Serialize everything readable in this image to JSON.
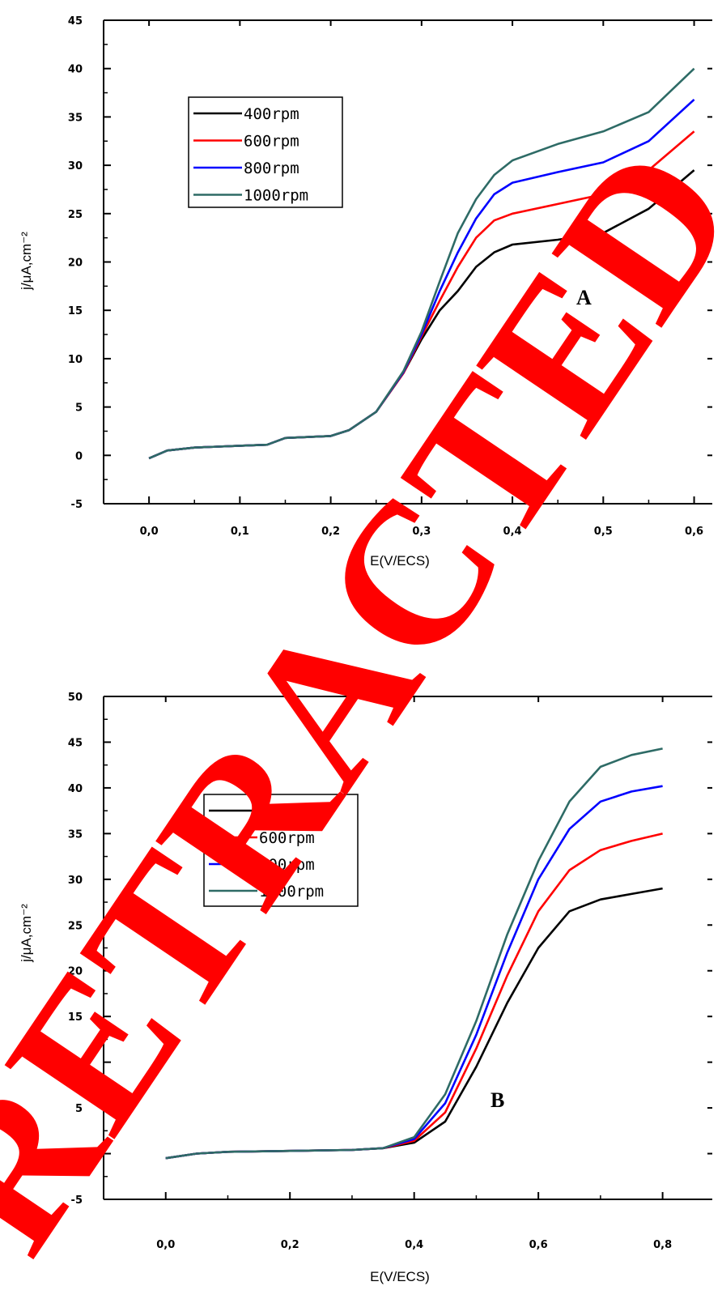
{
  "chart_data": [
    {
      "type": "line",
      "panel_label": "A",
      "xlabel": "E(V/ECS)",
      "ylabel": "j/μA,cm⁻²",
      "xlim": [
        -0.05,
        0.62
      ],
      "ylim": [
        -5,
        45
      ],
      "x_ticks": [
        0.0,
        0.1,
        0.2,
        0.3,
        0.4,
        0.5,
        0.6
      ],
      "x_tick_labels": [
        "0,0",
        "0,1",
        "0,2",
        "0,3",
        "0,4",
        "0,5",
        "0,6"
      ],
      "y_ticks": [
        -5,
        0,
        5,
        10,
        15,
        20,
        25,
        30,
        35,
        40,
        45
      ],
      "y_tick_labels": [
        "-5",
        "0",
        "5",
        "10",
        "15",
        "20",
        "25",
        "30",
        "35",
        "40",
        "45"
      ],
      "legend_position": "upper-left",
      "series": [
        {
          "name": "400rpm",
          "color": "#000000",
          "x": [
            0.0,
            0.02,
            0.05,
            0.1,
            0.13,
            0.15,
            0.2,
            0.22,
            0.25,
            0.28,
            0.3,
            0.32,
            0.34,
            0.36,
            0.38,
            0.4,
            0.45,
            0.5,
            0.55,
            0.6
          ],
          "y": [
            -0.3,
            0.5,
            0.8,
            1.0,
            1.1,
            1.8,
            2.0,
            2.6,
            4.5,
            8.5,
            12.0,
            15.0,
            17.0,
            19.5,
            21.0,
            21.8,
            22.3,
            23.0,
            25.5,
            29.5
          ]
        },
        {
          "name": "600rpm",
          "color": "#ff0000",
          "x": [
            0.0,
            0.02,
            0.05,
            0.1,
            0.13,
            0.15,
            0.2,
            0.22,
            0.25,
            0.28,
            0.3,
            0.32,
            0.34,
            0.36,
            0.38,
            0.4,
            0.45,
            0.5,
            0.55,
            0.6
          ],
          "y": [
            -0.3,
            0.5,
            0.8,
            1.0,
            1.1,
            1.8,
            2.0,
            2.6,
            4.5,
            8.5,
            12.3,
            16.0,
            19.5,
            22.5,
            24.3,
            25.0,
            26.0,
            27.0,
            29.5,
            33.5
          ]
        },
        {
          "name": "800rpm",
          "color": "#0000ff",
          "x": [
            0.0,
            0.02,
            0.05,
            0.1,
            0.13,
            0.15,
            0.2,
            0.22,
            0.25,
            0.28,
            0.3,
            0.32,
            0.34,
            0.36,
            0.38,
            0.4,
            0.45,
            0.5,
            0.55,
            0.6
          ],
          "y": [
            -0.3,
            0.5,
            0.8,
            1.0,
            1.1,
            1.8,
            2.0,
            2.6,
            4.5,
            8.6,
            12.5,
            17.0,
            21.0,
            24.5,
            27.0,
            28.2,
            29.3,
            30.3,
            32.5,
            36.8
          ]
        },
        {
          "name": "1000rpm",
          "color": "#2e6b66",
          "x": [
            0.0,
            0.02,
            0.05,
            0.1,
            0.13,
            0.15,
            0.2,
            0.22,
            0.25,
            0.28,
            0.3,
            0.32,
            0.34,
            0.36,
            0.38,
            0.4,
            0.45,
            0.5,
            0.55,
            0.6
          ],
          "y": [
            -0.3,
            0.5,
            0.8,
            1.0,
            1.1,
            1.8,
            2.0,
            2.6,
            4.5,
            8.7,
            12.8,
            18.0,
            23.0,
            26.5,
            29.0,
            30.5,
            32.2,
            33.5,
            35.5,
            40.0
          ]
        }
      ]
    },
    {
      "type": "line",
      "panel_label": "B",
      "xlabel": "E(V/ECS)",
      "ylabel": "j/μA,cm⁻²",
      "xlim": [
        -0.1,
        0.88
      ],
      "ylim": [
        -5,
        50
      ],
      "x_ticks": [
        0.0,
        0.2,
        0.4,
        0.6,
        0.8
      ],
      "x_tick_labels": [
        "0,0",
        "0,2",
        "0,4",
        "0,6",
        "0,8"
      ],
      "y_ticks": [
        -5,
        0,
        5,
        10,
        15,
        20,
        25,
        30,
        35,
        40,
        45,
        50
      ],
      "y_tick_labels": [
        "-5",
        "0",
        "5",
        "10",
        "15",
        "20",
        "25",
        "30",
        "35",
        "40",
        "45",
        "50"
      ],
      "legend_position": "upper-left",
      "series": [
        {
          "name": "400rpm",
          "color": "#000000",
          "x": [
            0.0,
            0.05,
            0.1,
            0.2,
            0.3,
            0.35,
            0.4,
            0.45,
            0.5,
            0.55,
            0.6,
            0.65,
            0.7,
            0.75,
            0.8
          ],
          "y": [
            -0.5,
            0.0,
            0.2,
            0.3,
            0.4,
            0.6,
            1.2,
            3.5,
            9.5,
            16.5,
            22.5,
            26.5,
            27.8,
            28.4,
            29.0
          ]
        },
        {
          "name": "600rpm",
          "color": "#ff0000",
          "x": [
            0.0,
            0.05,
            0.1,
            0.2,
            0.3,
            0.35,
            0.4,
            0.45,
            0.5,
            0.55,
            0.6,
            0.65,
            0.7,
            0.75,
            0.8
          ],
          "y": [
            -0.5,
            0.0,
            0.2,
            0.3,
            0.4,
            0.6,
            1.4,
            4.5,
            11.5,
            19.5,
            26.5,
            31.0,
            33.2,
            34.2,
            35.0
          ]
        },
        {
          "name": "800rpm",
          "color": "#0000ff",
          "x": [
            0.0,
            0.05,
            0.1,
            0.2,
            0.3,
            0.35,
            0.4,
            0.45,
            0.5,
            0.55,
            0.6,
            0.65,
            0.7,
            0.75,
            0.8
          ],
          "y": [
            -0.5,
            0.0,
            0.2,
            0.3,
            0.4,
            0.6,
            1.6,
            5.5,
            13.0,
            22.0,
            30.0,
            35.5,
            38.5,
            39.6,
            40.2
          ]
        },
        {
          "name": "1000rpm",
          "color": "#2e6b66",
          "x": [
            0.0,
            0.05,
            0.1,
            0.2,
            0.3,
            0.35,
            0.4,
            0.45,
            0.5,
            0.55,
            0.6,
            0.65,
            0.7,
            0.75,
            0.8
          ],
          "y": [
            -0.5,
            0.0,
            0.2,
            0.3,
            0.4,
            0.6,
            1.8,
            6.5,
            14.5,
            24.0,
            32.0,
            38.5,
            42.3,
            43.6,
            44.3
          ]
        }
      ]
    }
  ],
  "watermark": {
    "text": "RETRACTED",
    "color": "#ff0000"
  }
}
